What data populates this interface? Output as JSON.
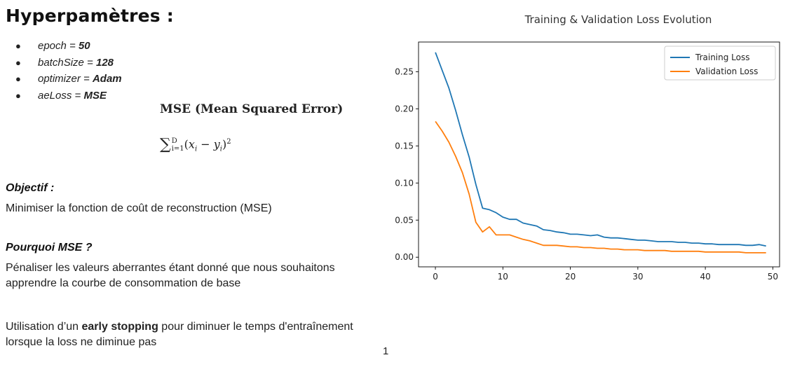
{
  "slide": {
    "title": "Hyperpamètres :",
    "params": [
      {
        "name": "epoch = ",
        "value": "50"
      },
      {
        "name": "batchSize = ",
        "value": "128"
      },
      {
        "name": "optimizer = ",
        "value": "Adam"
      },
      {
        "name": "aeLoss = ",
        "value": "MSE"
      }
    ],
    "mse_title": "MSE (Mean Squared Error)",
    "objectif_heading": "Objectif :",
    "objectif_text": "Minimiser la fonction de coût de reconstruction (MSE)",
    "pourquoi_heading": "Pourquoi MSE ?",
    "pourquoi_text": "Pénaliser les valeurs aberrantes étant donné que nous souhaitons apprendre la courbe de consommation de base",
    "early_prefix": "Utilisation d’un ",
    "early_bold": "early stopping",
    "early_suffix": " pour diminuer le temps d'entraînement lorsque la loss ne diminue pas",
    "page_number": "1"
  },
  "chart_data": {
    "type": "line",
    "title": "Training & Validation Loss Evolution",
    "xlabel": "",
    "ylabel": "",
    "xlim": [
      -2.5,
      51
    ],
    "ylim": [
      -0.013,
      0.29
    ],
    "xticks": [
      0,
      10,
      20,
      30,
      40,
      50
    ],
    "yticks": [
      0.0,
      0.05,
      0.1,
      0.15,
      0.2,
      0.25
    ],
    "xtick_labels": [
      "0",
      "10",
      "20",
      "30",
      "40",
      "50"
    ],
    "ytick_labels": [
      "0.00",
      "0.05",
      "0.10",
      "0.15",
      "0.20",
      "0.25"
    ],
    "legend_position": "top-right",
    "grid": false,
    "x": [
      0,
      1,
      2,
      3,
      4,
      5,
      6,
      7,
      8,
      9,
      10,
      11,
      12,
      13,
      14,
      15,
      16,
      17,
      18,
      19,
      20,
      21,
      22,
      23,
      24,
      25,
      26,
      27,
      28,
      29,
      30,
      31,
      32,
      33,
      34,
      35,
      36,
      37,
      38,
      39,
      40,
      41,
      42,
      43,
      44,
      45,
      46,
      47,
      48,
      49
    ],
    "series": [
      {
        "name": "Training Loss",
        "color": "#1f77b4",
        "values": [
          0.276,
          0.252,
          0.228,
          0.198,
          0.165,
          0.135,
          0.098,
          0.066,
          0.064,
          0.06,
          0.054,
          0.051,
          0.051,
          0.046,
          0.044,
          0.042,
          0.037,
          0.036,
          0.034,
          0.033,
          0.031,
          0.031,
          0.03,
          0.029,
          0.03,
          0.027,
          0.026,
          0.026,
          0.025,
          0.024,
          0.023,
          0.023,
          0.022,
          0.021,
          0.021,
          0.021,
          0.02,
          0.02,
          0.019,
          0.019,
          0.018,
          0.018,
          0.017,
          0.017,
          0.017,
          0.017,
          0.016,
          0.016,
          0.017,
          0.015
        ]
      },
      {
        "name": "Validation Loss",
        "color": "#ff7f0e",
        "values": [
          0.183,
          0.17,
          0.155,
          0.136,
          0.114,
          0.085,
          0.047,
          0.034,
          0.041,
          0.03,
          0.03,
          0.03,
          0.027,
          0.024,
          0.022,
          0.019,
          0.016,
          0.016,
          0.016,
          0.015,
          0.014,
          0.014,
          0.013,
          0.013,
          0.012,
          0.012,
          0.011,
          0.011,
          0.01,
          0.01,
          0.01,
          0.009,
          0.009,
          0.009,
          0.009,
          0.008,
          0.008,
          0.008,
          0.008,
          0.008,
          0.007,
          0.007,
          0.007,
          0.007,
          0.007,
          0.007,
          0.006,
          0.006,
          0.006,
          0.006
        ]
      }
    ]
  }
}
